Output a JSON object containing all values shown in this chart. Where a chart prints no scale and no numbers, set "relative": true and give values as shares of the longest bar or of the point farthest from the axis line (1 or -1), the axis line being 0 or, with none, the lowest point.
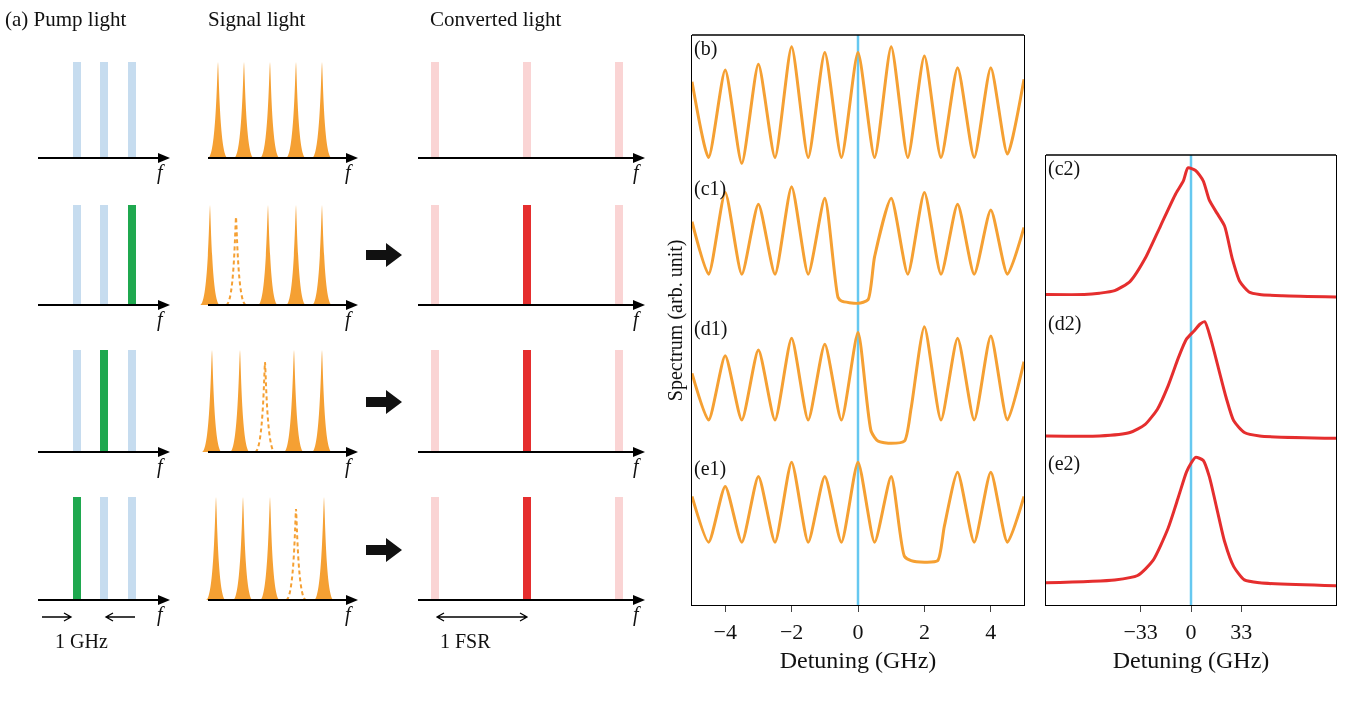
{
  "chart_data": [
    {
      "type": "other",
      "annotations": [
        "(a) Pump light",
        "Signal light",
        "Converted light",
        "f",
        "f",
        "f",
        "f",
        "f",
        "f",
        "f",
        "f",
        "f",
        "f",
        "f",
        "f",
        "1 GHz",
        "1 FSR"
      ]
    },
    {
      "type": "line",
      "title": "(b)",
      "relative": true,
      "xlim": [
        -5,
        5
      ],
      "tick_labels": false,
      "ref_lines": [
        {
          "axis": "x",
          "value": 0,
          "color": "#66c8f0"
        }
      ],
      "x": [
        -5,
        -4.5,
        -4,
        -3.5,
        -3,
        -2.5,
        -2,
        -1.5,
        -1,
        -0.5,
        0,
        0.5,
        1,
        1.5,
        2,
        2.5,
        3,
        3.5,
        4,
        4.5,
        5
      ],
      "series": [
        {
          "color": "#f5a033",
          "values": [
            0.7,
            0.05,
            0.8,
            0.0,
            0.85,
            0.05,
            1.0,
            0.05,
            0.95,
            0.05,
            0.95,
            0.05,
            1.0,
            0.05,
            0.92,
            0.05,
            0.82,
            0.05,
            0.82,
            0.08,
            0.72
          ]
        }
      ]
    },
    {
      "type": "line",
      "title": "(c1)",
      "ylabel": "Spectrum (arb. unit)",
      "relative": true,
      "xlim": [
        -5,
        5
      ],
      "tick_labels": false,
      "ref_lines": [
        {
          "axis": "x",
          "value": 0,
          "color": "#66c8f0"
        }
      ],
      "x": [
        -5,
        -4.5,
        -4,
        -3.5,
        -3,
        -2.5,
        -2,
        -1.5,
        -1,
        -0.6,
        -0.5,
        0,
        0.3,
        0.5,
        1,
        1.5,
        2,
        2.5,
        3,
        3.5,
        4,
        4.5,
        5
      ],
      "series": [
        {
          "color": "#f5a033",
          "values": [
            0.7,
            0.25,
            0.95,
            0.25,
            0.85,
            0.25,
            1.0,
            0.25,
            0.9,
            0.05,
            0.02,
            0,
            0.03,
            0.4,
            0.9,
            0.25,
            0.95,
            0.25,
            0.85,
            0.25,
            0.8,
            0.25,
            0.65
          ]
        }
      ]
    },
    {
      "type": "line",
      "title": "(d1)",
      "relative": true,
      "xlim": [
        -5,
        5
      ],
      "tick_labels": false,
      "ref_lines": [
        {
          "axis": "x",
          "value": 0,
          "color": "#66c8f0"
        }
      ],
      "x": [
        -5,
        -4.5,
        -4,
        -3.5,
        -3,
        -2.5,
        -2,
        -1.5,
        -1,
        -0.5,
        0,
        0.4,
        0.6,
        1,
        1.4,
        1.6,
        2,
        2.5,
        3,
        3.5,
        4,
        4.5,
        5
      ],
      "series": [
        {
          "color": "#f5a033",
          "values": [
            0.6,
            0.2,
            0.75,
            0.2,
            0.8,
            0.2,
            0.9,
            0.2,
            0.85,
            0.2,
            0.95,
            0.1,
            0.02,
            0,
            0.02,
            0.3,
            1.0,
            0.2,
            0.9,
            0.2,
            0.92,
            0.2,
            0.7
          ]
        }
      ]
    },
    {
      "type": "line",
      "title": "(e1)",
      "xlabel": "Detuning (GHz)",
      "relative": true,
      "xlim": [
        -5,
        5
      ],
      "xticks": [
        {
          "value": -4,
          "label": "−4"
        },
        {
          "value": -2,
          "label": "−2"
        },
        0,
        2,
        4
      ],
      "tick_labels": "x",
      "ref_lines": [
        {
          "axis": "x",
          "value": 0,
          "color": "#66c8f0"
        }
      ],
      "x": [
        -5,
        -4.5,
        -4,
        -3.5,
        -3,
        -2.5,
        -2,
        -1.5,
        -1,
        -0.5,
        0,
        0.5,
        1,
        1.4,
        1.6,
        2,
        2.4,
        2.6,
        3,
        3.5,
        4,
        4.5,
        5
      ],
      "series": [
        {
          "color": "#f5a033",
          "values": [
            0.76,
            0.44,
            0.83,
            0.44,
            0.9,
            0.44,
            1.0,
            0.44,
            0.9,
            0.44,
            1.0,
            0.44,
            0.9,
            0.34,
            0.31,
            0.3,
            0.31,
            0.55,
            0.93,
            0.44,
            0.93,
            0.44,
            0.76
          ]
        }
      ]
    },
    {
      "type": "line",
      "title": "(c2)",
      "relative": true,
      "xlim": [
        -95,
        95
      ],
      "tick_labels": false,
      "ref_lines": [
        {
          "axis": "x",
          "value": 0,
          "color": "#66c8f0"
        }
      ],
      "x": [
        -95,
        -70,
        -60,
        -50,
        -40,
        -30,
        -20,
        -10,
        -5,
        -2,
        3,
        8,
        12,
        17,
        22,
        27,
        32,
        38,
        45,
        60,
        95
      ],
      "series": [
        {
          "color": "#e52e2e",
          "values": [
            0.02,
            0.02,
            0.03,
            0.05,
            0.12,
            0.3,
            0.55,
            0.8,
            0.9,
            1.0,
            0.98,
            0.9,
            0.75,
            0.65,
            0.55,
            0.3,
            0.12,
            0.04,
            0.02,
            0.01,
            0
          ]
        }
      ]
    },
    {
      "type": "line",
      "title": "(d2)",
      "relative": true,
      "xlim": [
        -95,
        95
      ],
      "tick_labels": false,
      "ref_lines": [
        {
          "axis": "x",
          "value": 0,
          "color": "#66c8f0"
        }
      ],
      "x": [
        -95,
        -60,
        -40,
        -30,
        -22,
        -15,
        -8,
        -3,
        2,
        6,
        9,
        13,
        18,
        23,
        28,
        35,
        45,
        95
      ],
      "series": [
        {
          "color": "#e52e2e",
          "values": [
            0.02,
            0.02,
            0.05,
            0.12,
            0.25,
            0.45,
            0.7,
            0.85,
            0.92,
            0.98,
            1.0,
            0.85,
            0.6,
            0.35,
            0.15,
            0.05,
            0.02,
            0
          ]
        }
      ]
    },
    {
      "type": "line",
      "title": "(e2)",
      "xlabel": "Detuning (GHz)",
      "relative": true,
      "xlim": [
        -95,
        95
      ],
      "xticks": [
        {
          "value": -33,
          "label": "−33"
        },
        0,
        33
      ],
      "tick_labels": "x",
      "ref_lines": [
        {
          "axis": "x",
          "value": 0,
          "color": "#66c8f0"
        }
      ],
      "x": [
        -95,
        -50,
        -35,
        -25,
        -15,
        -8,
        -3,
        0,
        3,
        8,
        12,
        17,
        22,
        28,
        35,
        45,
        95
      ],
      "series": [
        {
          "color": "#e52e2e",
          "values": [
            0.15,
            0.17,
            0.2,
            0.3,
            0.52,
            0.74,
            0.9,
            0.96,
            1.0,
            0.98,
            0.87,
            0.65,
            0.43,
            0.26,
            0.17,
            0.15,
            0.13
          ]
        }
      ]
    }
  ]
}
